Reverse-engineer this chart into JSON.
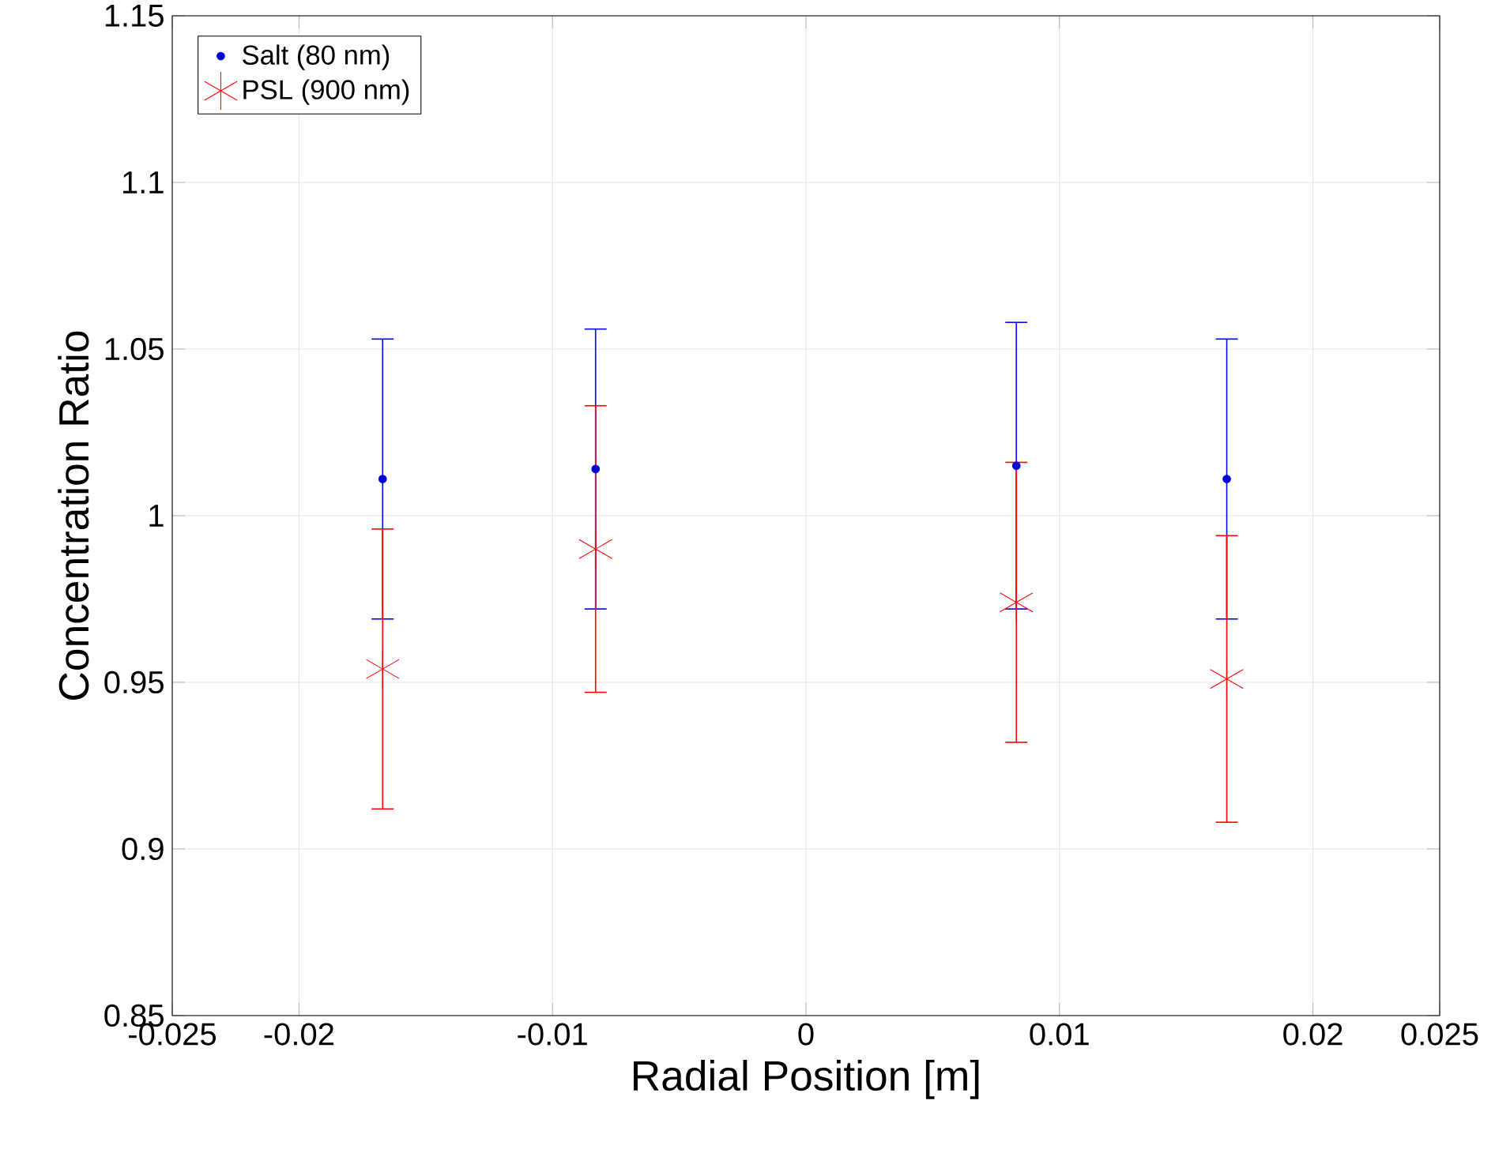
{
  "chart_data": {
    "type": "scatter",
    "xlabel": "Radial Position [m]",
    "ylabel": "Concentration Ratio",
    "xlim": [
      -0.025,
      0.025
    ],
    "ylim": [
      0.85,
      1.15
    ],
    "xticks": [
      -0.025,
      -0.02,
      -0.01,
      0,
      0.01,
      0.02,
      0.025
    ],
    "yticks": [
      0.85,
      0.9,
      0.95,
      1,
      1.05,
      1.1,
      1.15
    ],
    "grid": true,
    "legend": "top left",
    "series": [
      {
        "name": "Salt (80 nm)",
        "color": "#0000ff",
        "marker": "circle",
        "x": [
          -0.0167,
          -0.0083,
          0.0083,
          0.0166
        ],
        "values": [
          1.011,
          1.014,
          1.015,
          1.011
        ],
        "errors": [
          0.042,
          0.042,
          0.043,
          0.042
        ]
      },
      {
        "name": "PSL (900 nm)",
        "color": "#ff0000",
        "marker": "cross",
        "x": [
          -0.0167,
          -0.0083,
          0.0083,
          0.0166
        ],
        "values": [
          0.954,
          0.99,
          0.974,
          0.951
        ],
        "errors": [
          0.042,
          0.043,
          0.042,
          0.043
        ]
      }
    ]
  }
}
